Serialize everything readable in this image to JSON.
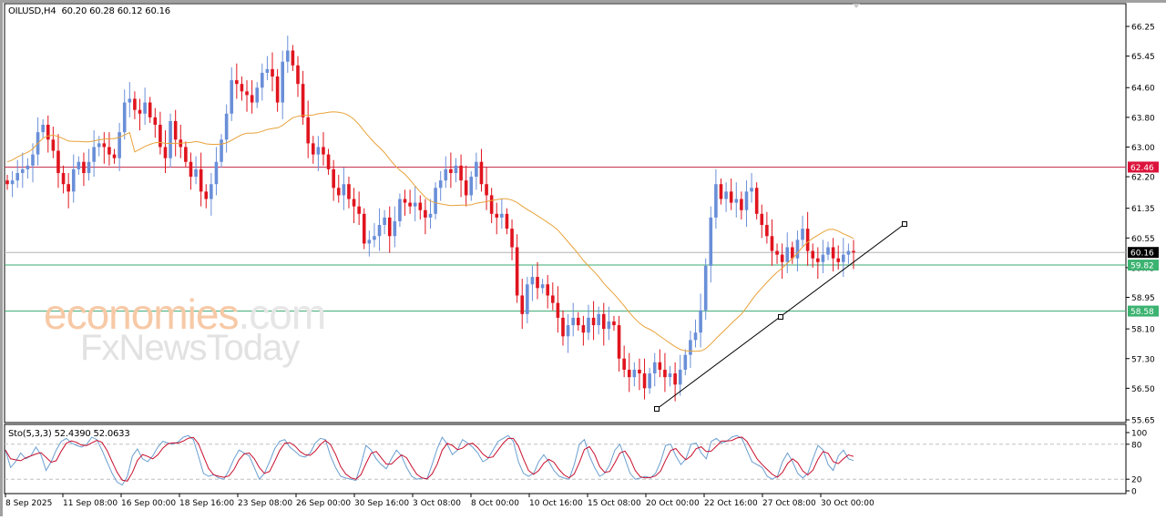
{
  "header": {
    "symbol": "OILUSD,H4",
    "ohlc": "60.20 60.28 60.12 60.16",
    "title_text": "OILUSD,H4  60.20 60.28 60.12 60.16"
  },
  "indicator": {
    "label": "Sto(5,3,3) 52.4390 52.0633",
    "name": "Sto(5,3,3)",
    "main_value": "52.4390",
    "signal_value": "52.0633"
  },
  "watermark": {
    "line1_main": "economies",
    "line1_suffix": ".com",
    "line2": "FxNewsToday"
  },
  "colors": {
    "bull": "#6a8fd8",
    "bear": "#e0141e",
    "ma": "#e8a23a",
    "resistance": "#c8324e",
    "support": "#3aa870",
    "current": "#b4b4b4",
    "trendline": "#000000",
    "sto_main": "#6a9fd0",
    "sto_signal": "#c8102e",
    "label_current_bg": "#000000",
    "label_resistance_bg": "#dc143c",
    "label_support_bg": "#3cb371"
  },
  "chart_data": [
    {
      "type": "candlestick",
      "title": "OILUSD,H4",
      "ohlc_last": {
        "open": 60.2,
        "high": 60.28,
        "low": 60.12,
        "close": 60.16
      },
      "y_ticks": [
        "66.25",
        "65.45",
        "64.60",
        "63.80",
        "63.00",
        "62.20",
        "61.35",
        "60.55",
        "59.75",
        "58.95",
        "58.10",
        "57.30",
        "56.50",
        "55.65"
      ],
      "ylim": [
        55.65,
        66.25
      ],
      "x_ticks": [
        "8 Sep 2025",
        "11 Sep 08:00",
        "16 Sep 00:00",
        "18 Sep 16:00",
        "23 Sep 08:00",
        "26 Sep 00:00",
        "30 Sep 16:00",
        "3 Oct 08:00",
        "8 Oct 00:00",
        "10 Oct 16:00",
        "15 Oct 08:00",
        "20 Oct 00:00",
        "22 Oct 16:00",
        "27 Oct 08:00",
        "30 Oct 00:00"
      ],
      "horizontal_levels": [
        {
          "name": "resistance",
          "value": 62.46,
          "label": "62.46"
        },
        {
          "name": "current",
          "value": 60.16,
          "label": "60.16"
        },
        {
          "name": "support-1",
          "value": 59.82,
          "label": "59.82"
        },
        {
          "name": "support-2",
          "value": 58.58,
          "label": "58.58"
        }
      ],
      "trendline": {
        "points": [
          [
            56.0,
            "20 Oct"
          ],
          [
            58.45,
            "27 Oct"
          ],
          [
            60.95,
            "4 Nov"
          ]
        ]
      },
      "moving_average": {
        "type": "line",
        "color": "orange"
      },
      "closes_approx": [
        62.0,
        62.1,
        62.3,
        62.4,
        62.5,
        62.8,
        63.4,
        63.6,
        63.2,
        62.9,
        62.3,
        62.0,
        61.8,
        62.4,
        62.6,
        62.3,
        62.6,
        63.0,
        63.1,
        63.0,
        62.8,
        62.7,
        63.4,
        64.2,
        64.3,
        64.0,
        63.9,
        64.2,
        63.8,
        63.6,
        63.0,
        62.7,
        63.7,
        63.2,
        63.0,
        62.6,
        62.2,
        62.4,
        61.8,
        61.6,
        62.0,
        62.6,
        63.2,
        63.9,
        64.8,
        64.7,
        64.5,
        64.4,
        64.2,
        64.6,
        65.0,
        65.1,
        64.9,
        64.2,
        65.3,
        65.6,
        65.2,
        64.7,
        63.8,
        63.1,
        62.8,
        63.0,
        62.8,
        62.4,
        61.9,
        61.7,
        62.0,
        61.6,
        61.4,
        61.2,
        60.4,
        60.5,
        60.6,
        60.9,
        61.1,
        60.6,
        61.0,
        61.6,
        61.5,
        61.4,
        61.5,
        61.3,
        61.1,
        61.2,
        61.9,
        62.1,
        62.4,
        62.3,
        62.5,
        62.1,
        61.7,
        62.2,
        62.6,
        62.0,
        61.7,
        61.2,
        61.1,
        61.2,
        60.8,
        60.3,
        59.0,
        58.5,
        59.3,
        59.5,
        59.2,
        59.3,
        59.0,
        58.8,
        58.4,
        57.9,
        58.2,
        58.4,
        58.2,
        58.0,
        58.4,
        58.2,
        58.5,
        58.1,
        58.3,
        58.2,
        57.3,
        57.0,
        56.8,
        57.0,
        56.9,
        56.5,
        56.9,
        57.2,
        57.0,
        56.8,
        56.9,
        56.6,
        57.0,
        57.4,
        57.8,
        58.0,
        58.6,
        59.8,
        61.1,
        62.0,
        61.6,
        61.8,
        61.5,
        61.6,
        61.3,
        61.8,
        61.9,
        61.2,
        60.9,
        60.6,
        60.2,
        60.1,
        59.9,
        60.3,
        60.0,
        60.5,
        60.8,
        60.2,
        60.0,
        59.9,
        60.1,
        60.3,
        60.0,
        59.9,
        60.1,
        60.2,
        60.16
      ],
      "series_names": [
        "OILUSD H4 candles",
        "Moving average",
        "Trendline"
      ]
    },
    {
      "type": "line",
      "title": "Sto(5,3,3)",
      "series": [
        {
          "name": "%K",
          "value": 52.439
        },
        {
          "name": "%D",
          "value": 52.0633
        }
      ],
      "y_ticks": [
        "100",
        "80",
        "20",
        "0"
      ],
      "ylim": [
        0,
        100
      ],
      "levels": [
        20,
        80
      ],
      "k_approx": [
        70,
        40,
        50,
        65,
        55,
        60,
        75,
        62,
        35,
        50,
        70,
        85,
        90,
        82,
        78,
        75,
        80,
        92,
        88,
        70,
        50,
        30,
        15,
        10,
        25,
        60,
        72,
        55,
        50,
        60,
        75,
        85,
        82,
        80,
        84,
        92,
        95,
        88,
        60,
        30,
        25,
        28,
        22,
        20,
        35,
        55,
        70,
        65,
        60,
        40,
        20,
        30,
        50,
        72,
        85,
        88,
        75,
        68,
        60,
        58,
        65,
        82,
        90,
        88,
        60,
        40,
        25,
        22,
        20,
        18,
        45,
        78,
        70,
        55,
        45,
        38,
        55,
        70,
        60,
        40,
        25,
        20,
        22,
        20,
        45,
        72,
        92,
        80,
        62,
        70,
        88,
        82,
        75,
        65,
        50,
        55,
        70,
        85,
        90,
        95,
        85,
        50,
        30,
        25,
        30,
        50,
        62,
        50,
        35,
        25,
        22,
        20,
        45,
        80,
        88,
        60,
        40,
        25,
        30,
        45,
        70,
        80,
        55,
        30,
        20,
        22,
        25,
        22,
        30,
        50,
        78,
        80,
        60,
        45,
        55,
        80,
        82,
        65,
        55,
        85,
        90,
        82,
        85,
        92,
        95,
        90,
        70,
        50,
        45,
        40,
        25,
        20,
        25,
        50,
        65,
        50,
        30,
        22,
        30,
        55,
        78,
        70,
        45,
        35,
        60,
        70,
        55,
        52
      ]
    }
  ]
}
